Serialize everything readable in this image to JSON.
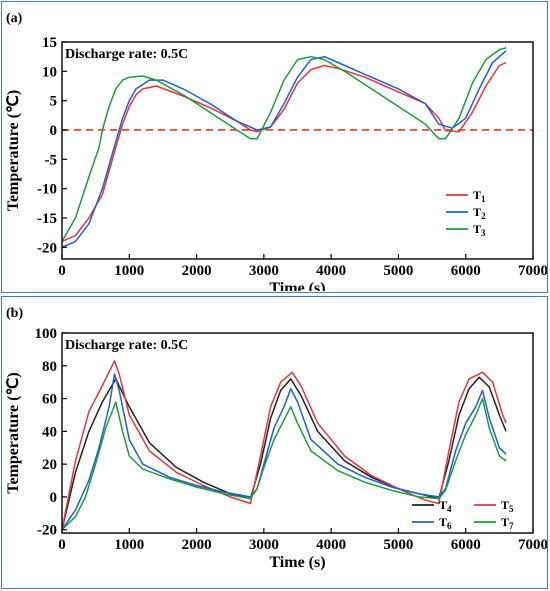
{
  "chart_data": [
    {
      "panel_label": "(a)",
      "type": "line",
      "title": "Discharge rate: 0.5C",
      "xlabel": "Time (s)",
      "ylabel": "Temperature (℃)",
      "xlim": [
        0,
        7000
      ],
      "ylim": [
        -22,
        15
      ],
      "xticks": [
        0,
        1000,
        2000,
        3000,
        4000,
        5000,
        6000,
        7000
      ],
      "yticks": [
        -20,
        -15,
        -10,
        -5,
        0,
        5,
        10,
        15
      ],
      "reference_line": {
        "y": 0,
        "color": "#e8332a",
        "style": "dashed"
      },
      "legend": "bottom-right",
      "series": [
        {
          "name": "T",
          "sub": "1",
          "color": "#e8333b",
          "x": [
            0,
            200,
            400,
            600,
            700,
            800,
            900,
            1000,
            1100,
            1200,
            1400,
            1800,
            2200,
            2600,
            2800,
            2900,
            3100,
            3300,
            3500,
            3700,
            3900,
            4100,
            4500,
            5000,
            5400,
            5600,
            5700,
            5900,
            6100,
            6300,
            6500,
            6600
          ],
          "y": [
            -19,
            -18,
            -15,
            -11,
            -7,
            -3,
            1,
            4,
            6,
            7,
            7.5,
            5.8,
            3.8,
            1.5,
            0,
            -0.3,
            0.5,
            3.5,
            8,
            10.3,
            11,
            10.5,
            9,
            6.5,
            4.5,
            2,
            -0.1,
            -0.3,
            3,
            7.5,
            11,
            11.5
          ]
        },
        {
          "name": "T",
          "sub": "2",
          "color": "#1f5fd8",
          "x": [
            0,
            200,
            400,
            600,
            700,
            800,
            900,
            1000,
            1100,
            1300,
            1500,
            1800,
            2200,
            2600,
            2900,
            3100,
            3300,
            3500,
            3700,
            3900,
            4100,
            4500,
            5000,
            5400,
            5600,
            5800,
            6000,
            6200,
            6400,
            6600
          ],
          "y": [
            -20,
            -19,
            -16,
            -10,
            -6,
            -2,
            2,
            5,
            7,
            8.5,
            8.5,
            7,
            4.5,
            1.5,
            0,
            0.5,
            4.5,
            9,
            12,
            12.5,
            11.5,
            9.5,
            7,
            4.5,
            1,
            0.3,
            2,
            7,
            11.5,
            13.5
          ]
        },
        {
          "name": "T",
          "sub": "3",
          "color": "#1a9e3a",
          "x": [
            0,
            200,
            400,
            550,
            600,
            700,
            800,
            900,
            1000,
            1200,
            1400,
            1800,
            2200,
            2600,
            2800,
            2900,
            3100,
            3300,
            3500,
            3700,
            3900,
            4200,
            4600,
            5000,
            5400,
            5600,
            5700,
            5900,
            6100,
            6300,
            6500,
            6600
          ],
          "y": [
            -19,
            -15,
            -8,
            -3,
            0,
            4,
            7,
            8.5,
            9,
            9.2,
            8.5,
            6,
            3,
            0,
            -1.5,
            -1.5,
            3,
            8.5,
            12,
            12.5,
            12,
            10,
            7,
            4,
            1,
            -1.5,
            -1.5,
            2,
            8,
            12,
            13.7,
            14
          ]
        }
      ]
    },
    {
      "panel_label": "(b)",
      "type": "line",
      "title": "Discharge rate: 0.5C",
      "xlabel": "Time (s)",
      "ylabel": "Temperature (℃)",
      "xlim": [
        0,
        7000
      ],
      "ylim": [
        -22,
        100
      ],
      "xticks": [
        0,
        1000,
        2000,
        3000,
        4000,
        5000,
        6000,
        7000
      ],
      "yticks": [
        -20,
        0,
        20,
        40,
        60,
        80,
        100
      ],
      "legend": "bottom-right",
      "series": [
        {
          "name": "T",
          "sub": "4",
          "color": "#222222",
          "x": [
            0,
            200,
            400,
            600,
            800,
            1000,
            1300,
            1700,
            2100,
            2500,
            2800,
            2950,
            3100,
            3250,
            3400,
            3550,
            3800,
            4200,
            4600,
            5000,
            5400,
            5600,
            5750,
            5900,
            6050,
            6200,
            6350,
            6500,
            6600
          ],
          "y": [
            -20,
            15,
            40,
            58,
            72,
            55,
            33,
            18,
            9,
            2,
            -1,
            20,
            48,
            65,
            72,
            62,
            40,
            22,
            12,
            5,
            1,
            -1,
            22,
            50,
            66,
            73,
            67,
            50,
            40
          ]
        },
        {
          "name": "T",
          "sub": "5",
          "color": "#e8333b",
          "x": [
            0,
            200,
            400,
            600,
            780,
            850,
            1000,
            1300,
            1700,
            2100,
            2500,
            2800,
            2950,
            3100,
            3250,
            3420,
            3550,
            3800,
            4200,
            4600,
            5000,
            5400,
            5600,
            5750,
            5900,
            6050,
            6250,
            6400,
            6550,
            6600
          ],
          "y": [
            -20,
            22,
            52,
            68,
            83,
            75,
            50,
            28,
            15,
            7,
            0,
            -4,
            25,
            55,
            70,
            76,
            68,
            45,
            25,
            13,
            5,
            -2,
            -4,
            28,
            58,
            72,
            76,
            70,
            50,
            45
          ]
        },
        {
          "name": "T",
          "sub": "6",
          "color": "#1f5fd8",
          "x": [
            0,
            200,
            400,
            550,
            700,
            780,
            850,
            1000,
            1200,
            1600,
            2000,
            2400,
            2800,
            2900,
            3000,
            3150,
            3300,
            3400,
            3500,
            3700,
            4100,
            4500,
            4900,
            5300,
            5600,
            5700,
            5850,
            6000,
            6150,
            6250,
            6350,
            6500,
            6600
          ],
          "y": [
            -20,
            -8,
            10,
            30,
            55,
            75,
            65,
            35,
            20,
            12,
            7,
            3,
            0,
            5,
            20,
            42,
            55,
            66,
            58,
            35,
            20,
            12,
            6,
            2,
            0,
            5,
            28,
            45,
            55,
            65,
            48,
            30,
            26
          ]
        },
        {
          "name": "T",
          "sub": "7",
          "color": "#1a9e3a",
          "x": [
            0,
            200,
            350,
            500,
            650,
            800,
            900,
            1000,
            1200,
            1600,
            2000,
            2400,
            2800,
            2900,
            3000,
            3150,
            3300,
            3400,
            3500,
            3700,
            4100,
            4500,
            4900,
            5300,
            5600,
            5700,
            5850,
            6000,
            6150,
            6250,
            6350,
            6500,
            6600
          ],
          "y": [
            -20,
            -12,
            0,
            20,
            42,
            58,
            40,
            25,
            17,
            11,
            6,
            2,
            -1,
            5,
            18,
            35,
            47,
            55,
            45,
            28,
            16,
            9,
            4,
            0,
            -1,
            4,
            22,
            38,
            50,
            60,
            42,
            25,
            22
          ]
        }
      ]
    }
  ]
}
